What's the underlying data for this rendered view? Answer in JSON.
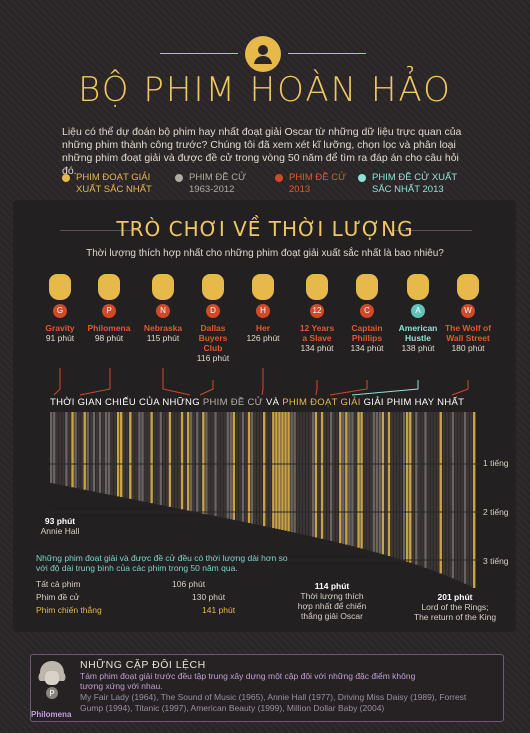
{
  "header": {
    "title": "BỘ PHIM HOÀN HẢO",
    "intro": "Liệu có thể dự đoán bộ phim hay nhất đoạt giải Oscar từ những dữ liệu trực quan của những phim thành công trước? Chúng tôi đã xem xét kĩ lưỡng, chọn lọc và phân loại những phim đoạt giải và được đề cử trong vòng 50 năm để tìm ra đáp án cho câu hỏi đó."
  },
  "legend": [
    {
      "line1": "PHIM ĐOẠT GIẢI",
      "line2": "XUẤT SẮC NHẤT",
      "color": "#e6b94a"
    },
    {
      "line1": "PHIM ĐỀ CỬ",
      "line2": "1963-2012",
      "color": "#b0aaa4"
    },
    {
      "line1": "PHIM ĐỀ CỬ",
      "line2": "2013",
      "color": "#d04a28"
    },
    {
      "line1": "PHIM ĐỀ CỬ XUẤT",
      "line2": "SẮC NHẤT 2013",
      "color": "#8fe0d6"
    }
  ],
  "section": {
    "title": "TRÒ CHƠI VỀ THỜI LƯỢNG",
    "subtitle": "Thời lượng thích hợp nhất cho những phim đoạt giải xuất sắc nhất là bao nhiêu?"
  },
  "films": [
    {
      "letter": "G",
      "name_lines": [
        "Gravity"
      ],
      "minutes": "91 phút",
      "color": "#d04a28"
    },
    {
      "letter": "P",
      "name_lines": [
        "Philomena"
      ],
      "minutes": "98 phút",
      "color": "#d04a28"
    },
    {
      "letter": "N",
      "name_lines": [
        "Nebraska"
      ],
      "minutes": "115 phút",
      "color": "#d04a28"
    },
    {
      "letter": "D",
      "name_lines": [
        "Dallas",
        "Buyers Club"
      ],
      "minutes": "116 phút",
      "color": "#d04a28"
    },
    {
      "letter": "H",
      "name_lines": [
        "Her"
      ],
      "minutes": "126 phút",
      "color": "#d04a28"
    },
    {
      "letter": "12",
      "name_lines": [
        "12 Years",
        "a Slave"
      ],
      "minutes": "134 phút",
      "color": "#d04a28"
    },
    {
      "letter": "C",
      "name_lines": [
        "Captain",
        "Phillips"
      ],
      "minutes": "134 phút",
      "color": "#d04a28"
    },
    {
      "letter": "A",
      "name_lines": [
        "American",
        "Hustle"
      ],
      "minutes": "138 phút",
      "color": "#5fc4b8"
    },
    {
      "letter": "W",
      "name_lines": [
        "The Wolf of",
        "Wall Street"
      ],
      "minutes": "180 phút",
      "color": "#d04a28"
    }
  ],
  "chart": {
    "title_a": "THỜI GIAN CHIẾU CỦA NHỮNG ",
    "title_b": "PHIM ĐỀ CỬ",
    "title_c": " VÀ ",
    "title_d": "PHIM ĐOẠT GIẢI",
    "title_e": " GIẢI PHIM HAY NHẤT",
    "y_labels": [
      "1 tiếng",
      "2 tiếng",
      "3 tiếng"
    ],
    "min_label": {
      "value": "93 phút",
      "name": "Annie Hall"
    },
    "best_label": {
      "value": "114 phút",
      "lines": [
        "Thời lượng thích",
        "hợp nhất để chiến",
        "thắng giải Oscar"
      ]
    },
    "max_label": {
      "value": "201 phút",
      "lines": [
        "Lord of the Rings;",
        "The return of the King"
      ]
    },
    "note": "Những phim đoạt giải và được đề cử đều có thời lượng dài hơn so với độ dài trung bình của các phim trong 50 năm qua.",
    "stats": [
      {
        "label": "Tất cả phim",
        "value": "106 phút",
        "color": "#d8d0c4"
      },
      {
        "label": "Phim đề cử",
        "value": "130 phút",
        "color": "#d8d0c4"
      },
      {
        "label": "Phim chiến thắng",
        "value": "141 phút",
        "color": "#e6b94a"
      }
    ]
  },
  "footer": {
    "title": "NHỮNG CẶP ĐÔI LỆCH",
    "subtitle": "Tám phim đoạt giải trước đều tập trung xây dựng một cặp đôi với những đặc điểm không tương xứng với nhau.",
    "list": "My Fair Lady (1964), The Sound of Music (1965), Annie Hall (1977), Driving Miss Daisy (1989), Forrest Gump (1994), Titanic (1997), American Beauty (1999), Million Dollar Baby (2004)",
    "avatar_letter": "P",
    "avatar_name": "Philomena"
  }
}
